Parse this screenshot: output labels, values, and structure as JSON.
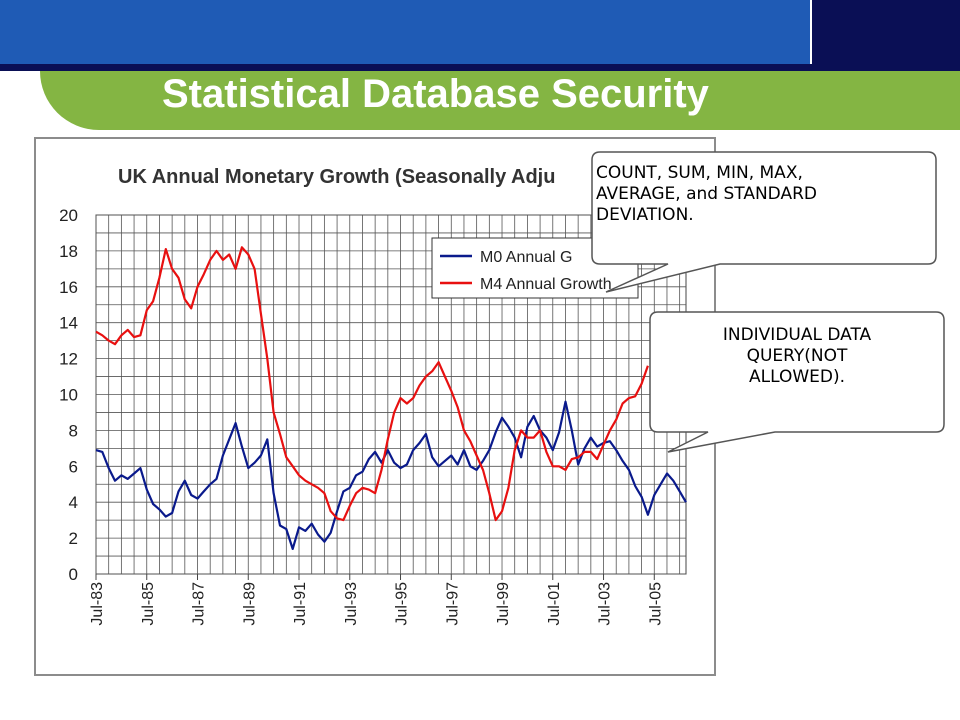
{
  "slide": {
    "title": "Statistical Database Security",
    "colors": {
      "header_blue": "#1f5bb5",
      "header_navy": "#0a0f55",
      "accent_green": "#84b543"
    }
  },
  "callouts": {
    "aggregate": [
      "COUNT, SUM, MIN, MAX,",
      "AVERAGE, and STANDARD",
      "DEVIATION."
    ],
    "individual": [
      "INDIVIDUAL DATA",
      "QUERY(NOT",
      "ALLOWED)."
    ]
  },
  "chart_data": {
    "type": "line",
    "title": "UK Annual Monetary Growth (Seasonally Adju",
    "xlabel": "",
    "ylabel": "",
    "ylim": [
      0,
      20
    ],
    "yticks": [
      "0",
      "2",
      "4",
      "6",
      "8",
      "10",
      "12",
      "14",
      "16",
      "18",
      "20"
    ],
    "xlim": [
      1983.5,
      2006.75
    ],
    "xtick_labels": [
      "Jul-83",
      "Jul-85",
      "Jul-87",
      "Jul-89",
      "Jul-91",
      "Jul-93",
      "Jul-95",
      "Jul-97",
      "Jul-99",
      "Jul-01",
      "Jul-03",
      "Jul-05"
    ],
    "grid": true,
    "legend_position": "top-right",
    "series": [
      {
        "name": "M0 Annual G",
        "color": "#0a1a8c",
        "points": [
          [
            1983.5,
            6.9
          ],
          [
            1983.75,
            6.8
          ],
          [
            1984.0,
            5.9
          ],
          [
            1984.25,
            5.2
          ],
          [
            1984.5,
            5.5
          ],
          [
            1984.75,
            5.3
          ],
          [
            1985.0,
            5.6
          ],
          [
            1985.25,
            5.9
          ],
          [
            1985.5,
            4.7
          ],
          [
            1985.75,
            3.9
          ],
          [
            1986.0,
            3.6
          ],
          [
            1986.25,
            3.2
          ],
          [
            1986.5,
            3.4
          ],
          [
            1986.75,
            4.6
          ],
          [
            1987.0,
            5.2
          ],
          [
            1987.25,
            4.4
          ],
          [
            1987.5,
            4.2
          ],
          [
            1987.75,
            4.6
          ],
          [
            1988.0,
            5.0
          ],
          [
            1988.25,
            5.3
          ],
          [
            1988.5,
            6.6
          ],
          [
            1988.75,
            7.5
          ],
          [
            1989.0,
            8.4
          ],
          [
            1989.25,
            7.1
          ],
          [
            1989.5,
            5.9
          ],
          [
            1989.75,
            6.2
          ],
          [
            1990.0,
            6.6
          ],
          [
            1990.25,
            7.5
          ],
          [
            1990.5,
            4.5
          ],
          [
            1990.75,
            2.7
          ],
          [
            1991.0,
            2.5
          ],
          [
            1991.25,
            1.4
          ],
          [
            1991.5,
            2.6
          ],
          [
            1991.75,
            2.4
          ],
          [
            1992.0,
            2.8
          ],
          [
            1992.25,
            2.2
          ],
          [
            1992.5,
            1.8
          ],
          [
            1992.75,
            2.3
          ],
          [
            1993.0,
            3.5
          ],
          [
            1993.25,
            4.6
          ],
          [
            1993.5,
            4.8
          ],
          [
            1993.75,
            5.5
          ],
          [
            1994.0,
            5.7
          ],
          [
            1994.25,
            6.4
          ],
          [
            1994.5,
            6.8
          ],
          [
            1994.75,
            6.2
          ],
          [
            1995.0,
            6.9
          ],
          [
            1995.25,
            6.2
          ],
          [
            1995.5,
            5.9
          ],
          [
            1995.75,
            6.1
          ],
          [
            1996.0,
            6.9
          ],
          [
            1996.25,
            7.3
          ],
          [
            1996.5,
            7.8
          ],
          [
            1996.75,
            6.5
          ],
          [
            1997.0,
            6.0
          ],
          [
            1997.25,
            6.3
          ],
          [
            1997.5,
            6.6
          ],
          [
            1997.75,
            6.1
          ],
          [
            1998.0,
            6.9
          ],
          [
            1998.25,
            6.0
          ],
          [
            1998.5,
            5.8
          ],
          [
            1998.75,
            6.3
          ],
          [
            1999.0,
            6.9
          ],
          [
            1999.25,
            7.9
          ],
          [
            1999.5,
            8.7
          ],
          [
            1999.75,
            8.2
          ],
          [
            2000.0,
            7.6
          ],
          [
            2000.25,
            6.5
          ],
          [
            2000.5,
            8.2
          ],
          [
            2000.75,
            8.8
          ],
          [
            2001.0,
            8.0
          ],
          [
            2001.25,
            7.6
          ],
          [
            2001.5,
            6.9
          ],
          [
            2001.75,
            7.9
          ],
          [
            2002.0,
            9.6
          ],
          [
            2002.25,
            8.0
          ],
          [
            2002.5,
            6.1
          ],
          [
            2002.75,
            7.0
          ],
          [
            2003.0,
            7.6
          ],
          [
            2003.25,
            7.1
          ],
          [
            2003.5,
            7.3
          ],
          [
            2003.75,
            7.4
          ],
          [
            2004.0,
            6.9
          ],
          [
            2004.25,
            6.3
          ],
          [
            2004.5,
            5.8
          ],
          [
            2004.75,
            4.9
          ],
          [
            2005.0,
            4.3
          ],
          [
            2005.25,
            3.3
          ],
          [
            2005.5,
            4.4
          ],
          [
            2005.75,
            5.0
          ],
          [
            2006.0,
            5.6
          ],
          [
            2006.25,
            5.2
          ],
          [
            2006.5,
            4.6
          ],
          [
            2006.75,
            4.0
          ]
        ]
      },
      {
        "name": "M4 Annual Growth",
        "color": "#e81010",
        "points": [
          [
            1983.5,
            13.5
          ],
          [
            1983.75,
            13.3
          ],
          [
            1984.0,
            13.0
          ],
          [
            1984.25,
            12.8
          ],
          [
            1984.5,
            13.3
          ],
          [
            1984.75,
            13.6
          ],
          [
            1985.0,
            13.2
          ],
          [
            1985.25,
            13.3
          ],
          [
            1985.5,
            14.7
          ],
          [
            1985.75,
            15.2
          ],
          [
            1986.0,
            16.5
          ],
          [
            1986.25,
            18.1
          ],
          [
            1986.5,
            17.0
          ],
          [
            1986.75,
            16.5
          ],
          [
            1987.0,
            15.3
          ],
          [
            1987.25,
            14.8
          ],
          [
            1987.5,
            16.0
          ],
          [
            1987.75,
            16.7
          ],
          [
            1988.0,
            17.5
          ],
          [
            1988.25,
            18.0
          ],
          [
            1988.5,
            17.5
          ],
          [
            1988.75,
            17.8
          ],
          [
            1989.0,
            17.0
          ],
          [
            1989.25,
            18.2
          ],
          [
            1989.5,
            17.8
          ],
          [
            1989.75,
            17.0
          ],
          [
            1990.0,
            14.5
          ],
          [
            1990.25,
            12.0
          ],
          [
            1990.5,
            9.0
          ],
          [
            1990.75,
            7.8
          ],
          [
            1991.0,
            6.5
          ],
          [
            1991.25,
            6.0
          ],
          [
            1991.5,
            5.5
          ],
          [
            1991.75,
            5.2
          ],
          [
            1992.0,
            5.0
          ],
          [
            1992.25,
            4.8
          ],
          [
            1992.5,
            4.5
          ],
          [
            1992.75,
            3.5
          ],
          [
            1993.0,
            3.1
          ],
          [
            1993.25,
            3.0
          ],
          [
            1993.5,
            3.8
          ],
          [
            1993.75,
            4.5
          ],
          [
            1994.0,
            4.8
          ],
          [
            1994.25,
            4.7
          ],
          [
            1994.5,
            4.5
          ],
          [
            1994.75,
            5.8
          ],
          [
            1995.0,
            7.5
          ],
          [
            1995.25,
            9.0
          ],
          [
            1995.5,
            9.8
          ],
          [
            1995.75,
            9.5
          ],
          [
            1996.0,
            9.8
          ],
          [
            1996.25,
            10.5
          ],
          [
            1996.5,
            11.0
          ],
          [
            1996.75,
            11.3
          ],
          [
            1997.0,
            11.8
          ],
          [
            1997.25,
            11.0
          ],
          [
            1997.5,
            10.2
          ],
          [
            1997.75,
            9.3
          ],
          [
            1998.0,
            8.0
          ],
          [
            1998.25,
            7.4
          ],
          [
            1998.5,
            6.6
          ],
          [
            1998.75,
            5.8
          ],
          [
            1999.0,
            4.5
          ],
          [
            1999.25,
            3.0
          ],
          [
            1999.5,
            3.5
          ],
          [
            1999.75,
            4.8
          ],
          [
            2000.0,
            6.9
          ],
          [
            2000.25,
            8.0
          ],
          [
            2000.5,
            7.6
          ],
          [
            2000.75,
            7.6
          ],
          [
            2001.0,
            8.0
          ],
          [
            2001.25,
            6.8
          ],
          [
            2001.5,
            6.0
          ],
          [
            2001.75,
            6.0
          ],
          [
            2002.0,
            5.8
          ],
          [
            2002.25,
            6.4
          ],
          [
            2002.5,
            6.5
          ],
          [
            2002.75,
            6.8
          ],
          [
            2003.0,
            6.8
          ],
          [
            2003.25,
            6.4
          ],
          [
            2003.5,
            7.2
          ],
          [
            2003.75,
            8.0
          ],
          [
            2004.0,
            8.6
          ],
          [
            2004.25,
            9.5
          ],
          [
            2004.5,
            9.8
          ],
          [
            2004.75,
            9.9
          ],
          [
            2005.0,
            10.6
          ],
          [
            2005.25,
            11.6
          ]
        ]
      }
    ]
  }
}
